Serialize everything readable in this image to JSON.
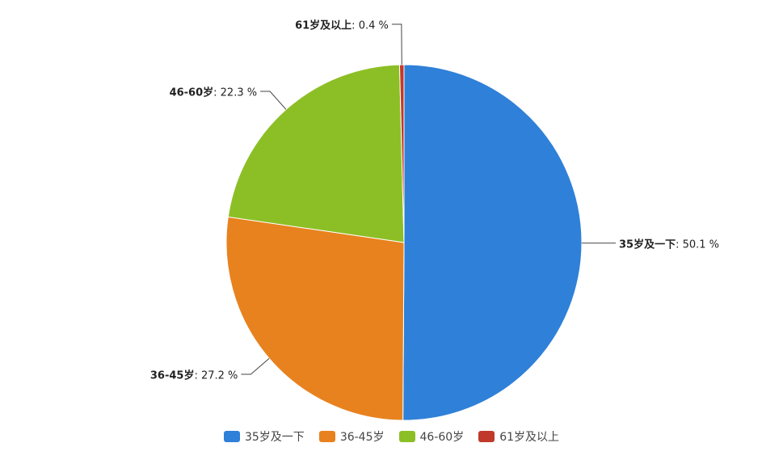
{
  "chart_data": {
    "type": "pie",
    "categories": [
      "35岁及一下",
      "36-45岁",
      "46-60岁",
      "61岁及以上"
    ],
    "values": [
      50.1,
      27.2,
      22.3,
      0.4
    ],
    "value_labels": [
      "50.1 %",
      "27.2 %",
      "22.3 %",
      "0.4 %"
    ],
    "colors": [
      "#2f80d8",
      "#e8821e",
      "#8cbf26",
      "#c0392b"
    ],
    "legend": "bottom"
  }
}
